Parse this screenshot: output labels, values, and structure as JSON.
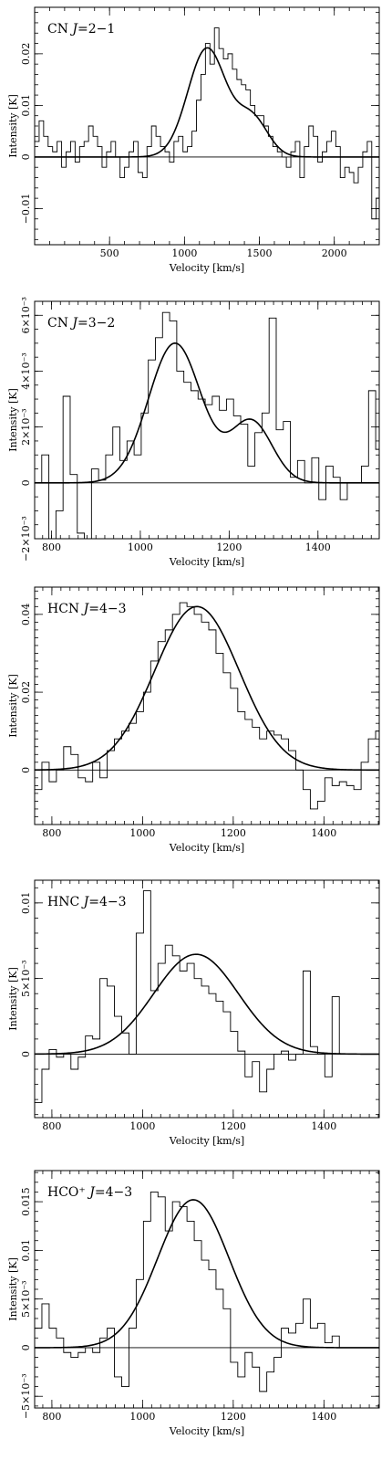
{
  "chart_data": [
    {
      "type": "line",
      "molecule": "CN",
      "transition": "J=2−1",
      "xlabel": "Velocity  [km/s]",
      "ylabel": "Intensity [K]",
      "xlim": [
        0,
        2300
      ],
      "ylim": [
        -0.017,
        0.029
      ],
      "xticks": [
        500,
        1000,
        1500,
        2000
      ],
      "xtick_labels": [
        "500",
        "1000",
        "1500",
        "2000"
      ],
      "yticks": [
        -0.01,
        0,
        0.01,
        0.02
      ],
      "ytick_labels": [
        "−0.01",
        "0",
        "0.01",
        "0.02"
      ],
      "xgrid": 100,
      "ygrid": 0.002,
      "series": [
        {
          "role": "spectrum",
          "x0": 0,
          "dx": 30,
          "values": [
            0.003,
            0.007,
            0.004,
            0.002,
            0.001,
            0.003,
            -0.002,
            0.001,
            0.003,
            -0.001,
            0.002,
            0.003,
            0.006,
            0.004,
            0.002,
            -0.002,
            0.001,
            0.003,
            0.0,
            -0.004,
            -0.002,
            0.001,
            0.003,
            -0.003,
            -0.004,
            0.002,
            0.006,
            0.004,
            0.002,
            0.001,
            -0.001,
            0.003,
            0.004,
            0.001,
            0.002,
            0.005,
            0.011,
            0.016,
            0.022,
            0.018,
            0.025,
            0.021,
            0.019,
            0.02,
            0.017,
            0.015,
            0.014,
            0.013,
            0.01,
            0.008,
            0.008,
            0.006,
            0.004,
            0.002,
            0.001,
            0.0,
            -0.002,
            0.001,
            0.003,
            -0.004,
            0.002,
            0.006,
            0.004,
            -0.001,
            0.001,
            0.003,
            0.005,
            0.002,
            -0.004,
            -0.002,
            -0.003,
            -0.005,
            -0.002,
            0.001,
            0.003,
            -0.012,
            -0.008
          ]
        },
        {
          "role": "fit",
          "components": [
            {
              "amp": 0.021,
              "center": 1150,
              "fwhm": 300
            },
            {
              "amp": 0.0075,
              "center": 1450,
              "fwhm": 250
            }
          ]
        }
      ]
    },
    {
      "type": "line",
      "molecule": "CN",
      "transition": "J=3−2",
      "xlabel": "Velocity  [km/s]",
      "ylabel": "Intensity [K]",
      "xlim": [
        762,
        1538
      ],
      "ylim": [
        -0.002,
        0.0065
      ],
      "xticks": [
        800,
        1000,
        1200,
        1400
      ],
      "xtick_labels": [
        "800",
        "1000",
        "1200",
        "1400"
      ],
      "yticks": [
        -0.002,
        0,
        0.002,
        0.004,
        0.006
      ],
      "ytick_labels": [
        "−2×10⁻³",
        "0",
        "2×10⁻³",
        "4×10⁻³",
        "6×10⁻³"
      ],
      "xgrid": 20,
      "ygrid": 0.0005,
      "series": [
        {
          "role": "spectrum",
          "x0": 762,
          "dx": 16,
          "values": [
            0.0,
            0.001,
            -0.002,
            -0.001,
            0.0031,
            0.0003,
            -0.0018,
            -0.002,
            0.0005,
            0.0001,
            0.001,
            0.002,
            0.0008,
            0.0015,
            0.001,
            0.0025,
            0.0044,
            0.0052,
            0.0061,
            0.0058,
            0.004,
            0.0036,
            0.0033,
            0.003,
            0.0028,
            0.0031,
            0.0026,
            0.003,
            0.0024,
            0.0021,
            0.0006,
            0.0018,
            0.0025,
            0.0059,
            0.0019,
            0.0022,
            0.0002,
            0.0008,
            0.0,
            0.0009,
            -0.0006,
            0.0006,
            0.0002,
            -0.0006,
            0.0,
            0.0,
            0.0006,
            0.0033,
            0.0012,
            -0.0005,
            -0.0008,
            0.0044
          ]
        },
        {
          "role": "fit",
          "components": [
            {
              "amp": 0.005,
              "center": 1078,
              "fwhm": 140
            },
            {
              "amp": 0.0022,
              "center": 1250,
              "fwhm": 110
            }
          ]
        }
      ]
    },
    {
      "type": "line",
      "molecule": "HCN",
      "transition": "J=4−3",
      "xlabel": "Velocity  [km/s]",
      "ylabel": "Intensity [K]",
      "xlim": [
        762,
        1522
      ],
      "ylim": [
        -0.014,
        0.047
      ],
      "xticks": [
        800,
        1000,
        1200,
        1400
      ],
      "xtick_labels": [
        "800",
        "1000",
        "1200",
        "1400"
      ],
      "yticks": [
        0,
        0.02,
        0.04
      ],
      "ytick_labels": [
        "0",
        "0.02",
        "0.04"
      ],
      "xgrid": 20,
      "ygrid": 0.002,
      "series": [
        {
          "role": "spectrum",
          "x0": 762,
          "dx": 16,
          "values": [
            -0.005,
            0.002,
            -0.003,
            0.0,
            0.006,
            0.004,
            -0.002,
            -0.003,
            0.002,
            -0.002,
            0.005,
            0.008,
            0.01,
            0.012,
            0.015,
            0.02,
            0.028,
            0.033,
            0.036,
            0.04,
            0.043,
            0.042,
            0.04,
            0.038,
            0.036,
            0.03,
            0.025,
            0.021,
            0.015,
            0.013,
            0.011,
            0.008,
            0.01,
            0.009,
            0.008,
            0.005,
            0.0,
            -0.005,
            -0.01,
            -0.008,
            -0.002,
            -0.004,
            -0.003,
            -0.004,
            -0.005,
            0.002,
            0.008,
            0.01
          ]
        },
        {
          "role": "fit",
          "components": [
            {
              "amp": 0.042,
              "center": 1120,
              "fwhm": 220
            }
          ]
        }
      ]
    },
    {
      "type": "line",
      "molecule": "HNC",
      "transition": "J=4−3",
      "xlabel": "Velocity  [km/s]",
      "ylabel": "Intensity [K]",
      "xlim": [
        762,
        1522
      ],
      "ylim": [
        -0.0042,
        0.0115
      ],
      "xticks": [
        800,
        1000,
        1200,
        1400
      ],
      "xtick_labels": [
        "800",
        "1000",
        "1200",
        "1400"
      ],
      "yticks": [
        0,
        0.005,
        0.01
      ],
      "ytick_labels": [
        "0",
        "5×10⁻³",
        "0.01"
      ],
      "xgrid": 20,
      "ygrid": 0.001,
      "series": [
        {
          "role": "spectrum",
          "x0": 762,
          "dx": 16,
          "values": [
            -0.0032,
            -0.001,
            0.0003,
            -0.0002,
            0.0,
            -0.001,
            -0.0002,
            0.0012,
            0.001,
            0.005,
            0.0045,
            0.0025,
            0.0014,
            0.0,
            0.008,
            0.0108,
            0.0042,
            0.006,
            0.0072,
            0.0065,
            0.0055,
            0.006,
            0.005,
            0.0045,
            0.004,
            0.0035,
            0.0028,
            0.0015,
            0.0002,
            -0.0015,
            -0.0005,
            -0.0025,
            -0.001,
            0.0,
            0.0002,
            -0.0004,
            0.0,
            0.0055,
            0.0005,
            0.0,
            -0.0015,
            0.0038,
            0.0
          ]
        },
        {
          "role": "fit",
          "components": [
            {
              "amp": 0.0066,
              "center": 1118,
              "fwhm": 220
            }
          ]
        }
      ]
    },
    {
      "type": "line",
      "molecule": "HCO⁺",
      "transition": "J=4−3",
      "xlabel": "Velocity  [km/s]",
      "ylabel": "Intensity [K]",
      "xlim": [
        762,
        1522
      ],
      "ylim": [
        -0.0062,
        0.0182
      ],
      "xticks": [
        800,
        1000,
        1200,
        1400
      ],
      "xtick_labels": [
        "800",
        "1000",
        "1200",
        "1400"
      ],
      "yticks": [
        -0.005,
        0,
        0.005,
        0.01,
        0.015
      ],
      "ytick_labels": [
        "−5×10⁻³",
        "0",
        "5×10⁻³",
        "0.01",
        "0.015"
      ],
      "xgrid": 20,
      "ygrid": 0.001,
      "series": [
        {
          "role": "spectrum",
          "x0": 762,
          "dx": 16,
          "values": [
            0.002,
            0.0045,
            0.002,
            0.001,
            -0.0005,
            -0.001,
            -0.0005,
            0.0,
            -0.0005,
            0.001,
            0.002,
            -0.003,
            -0.004,
            0.002,
            0.007,
            0.013,
            0.016,
            0.0155,
            0.012,
            0.015,
            0.0145,
            0.013,
            0.011,
            0.009,
            0.008,
            0.006,
            0.004,
            -0.0015,
            -0.003,
            -0.0005,
            -0.002,
            -0.0045,
            -0.0025,
            -0.001,
            0.002,
            0.0015,
            0.0025,
            0.005,
            0.002,
            0.0025,
            0.0005,
            0.0012,
            0.0
          ]
        },
        {
          "role": "fit",
          "components": [
            {
              "amp": 0.0152,
              "center": 1112,
              "fwhm": 185
            }
          ]
        }
      ]
    }
  ]
}
